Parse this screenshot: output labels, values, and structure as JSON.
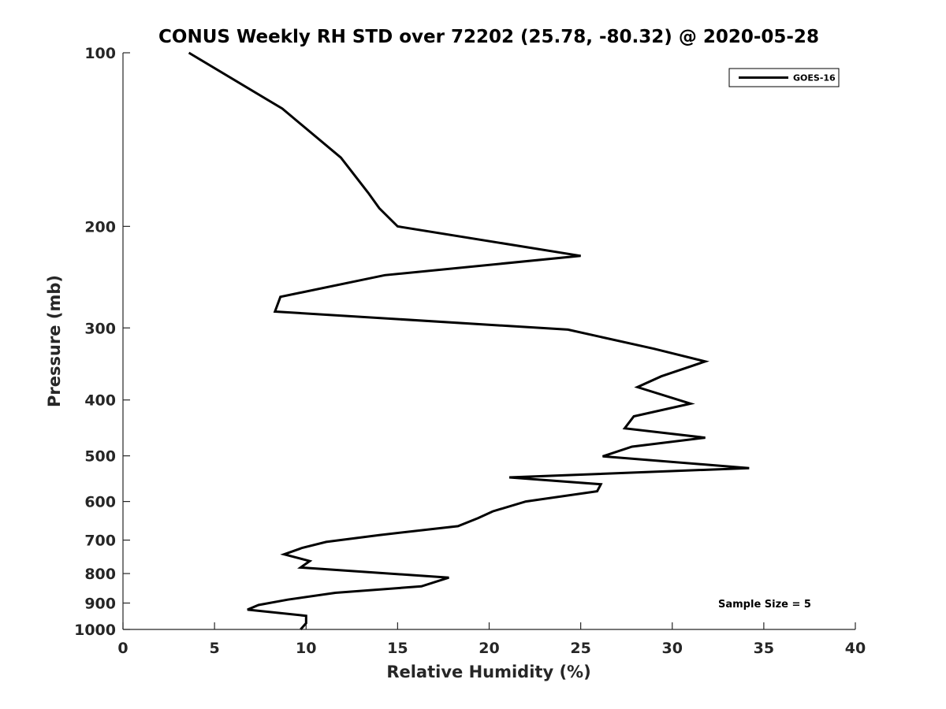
{
  "chart_data": {
    "type": "line",
    "title": "CONUS Weekly RH STD over 72202 (25.78, -80.32) @ 2020-05-28",
    "xlabel": "Relative Humidity (%)",
    "ylabel": "Pressure (mb)",
    "xlim": [
      0,
      40
    ],
    "ylim": [
      100,
      1000
    ],
    "y_scale": "log",
    "y_reversed": true,
    "x_ticks": [
      "0",
      "5",
      "10",
      "15",
      "20",
      "25",
      "30",
      "35",
      "40"
    ],
    "y_ticks": [
      "100",
      "200",
      "300",
      "400",
      "500",
      "600",
      "700",
      "800",
      "900",
      "1000"
    ],
    "grid": false,
    "legend_position": "top-right",
    "annotation": "Sample Size = 5",
    "series": [
      {
        "name": "GOES-16",
        "color": "#000000",
        "points": [
          [
            3.6,
            100
          ],
          [
            8.7,
            125
          ],
          [
            11.9,
            152
          ],
          [
            13.4,
            175
          ],
          [
            14.0,
            186
          ],
          [
            15.0,
            200
          ],
          [
            25.0,
            225
          ],
          [
            14.3,
            243
          ],
          [
            8.6,
            265
          ],
          [
            8.3,
            281
          ],
          [
            24.3,
            302
          ],
          [
            29.0,
            326
          ],
          [
            31.8,
            343
          ],
          [
            29.4,
            364
          ],
          [
            28.1,
            380
          ],
          [
            31.0,
            406
          ],
          [
            27.9,
            427
          ],
          [
            27.4,
            448
          ],
          [
            31.8,
            465
          ],
          [
            27.8,
            482
          ],
          [
            26.2,
            501
          ],
          [
            34.2,
            525
          ],
          [
            21.1,
            545
          ],
          [
            26.1,
            560
          ],
          [
            25.9,
            576
          ],
          [
            22.0,
            600
          ],
          [
            20.2,
            624
          ],
          [
            19.4,
            641
          ],
          [
            18.3,
            662
          ],
          [
            14.0,
            686
          ],
          [
            11.1,
            705
          ],
          [
            9.8,
            722
          ],
          [
            8.8,
            741
          ],
          [
            10.2,
            761
          ],
          [
            9.7,
            781
          ],
          [
            17.8,
            813
          ],
          [
            16.3,
            842
          ],
          [
            11.6,
            864
          ],
          [
            9.0,
            888
          ],
          [
            7.4,
            907
          ],
          [
            6.8,
            924
          ],
          [
            10.0,
            947
          ],
          [
            10.0,
            975
          ],
          [
            9.7,
            1000
          ]
        ]
      }
    ]
  }
}
